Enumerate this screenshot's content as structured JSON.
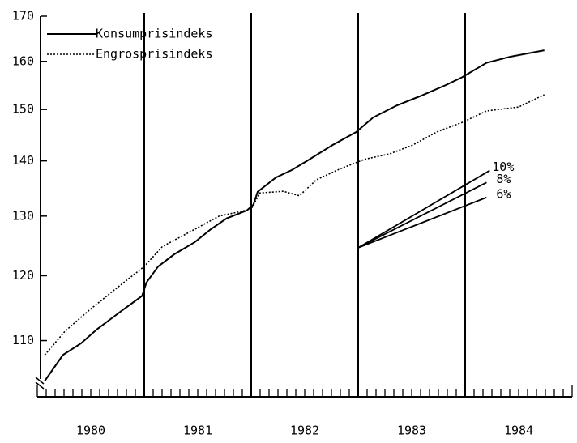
{
  "chart_data": {
    "type": "line",
    "log_y": true,
    "xlim": [
      1980,
      1985
    ],
    "ylim": [
      102,
      170
    ],
    "xticks": [
      {
        "value": 1980.5,
        "label": "1980"
      },
      {
        "value": 1981.5,
        "label": "1981"
      },
      {
        "value": 1982.5,
        "label": "1982"
      },
      {
        "value": 1983.5,
        "label": "1983"
      },
      {
        "value": 1984.5,
        "label": "1984"
      }
    ],
    "yticks": [
      110,
      120,
      130,
      140,
      150,
      160,
      170
    ],
    "vlines": [
      1981,
      1982,
      1983,
      1984
    ],
    "legend": "upper left",
    "series": [
      {
        "name": "Konsumprisindeks",
        "color": "#000",
        "dash": "solid",
        "x": [
          1980.07,
          1980.24,
          1980.41,
          1980.56,
          1980.79,
          1980.98,
          1981.02,
          1981.13,
          1981.28,
          1981.47,
          1981.62,
          1981.77,
          1981.96,
          1982.02,
          1982.06,
          1982.23,
          1982.38,
          1982.53,
          1982.76,
          1982.98,
          1983.14,
          1983.36,
          1983.59,
          1983.82,
          1983.97,
          1984.2,
          1984.42,
          1984.74
        ],
        "values": [
          104.2,
          107.9,
          109.6,
          111.7,
          114.5,
          116.8,
          118.9,
          121.5,
          123.5,
          125.5,
          127.7,
          129.6,
          131.0,
          132.0,
          134.3,
          136.9,
          138.3,
          140.1,
          143.0,
          145.5,
          148.4,
          150.8,
          152.8,
          155.0,
          156.6,
          159.7,
          161.0,
          162.4
        ]
      },
      {
        "name": "Engrosprisindeks",
        "color": "#000",
        "dash": "dotted",
        "x": [
          1980.07,
          1980.26,
          1980.48,
          1980.71,
          1981.0,
          1981.17,
          1981.47,
          1981.7,
          1982.0,
          1982.08,
          1982.3,
          1982.45,
          1982.61,
          1982.83,
          1983.06,
          1983.29,
          1983.51,
          1983.74,
          1983.97,
          1984.2,
          1984.5,
          1984.74
        ],
        "values": [
          107.9,
          111.4,
          114.5,
          117.6,
          121.5,
          124.8,
          127.7,
          130.0,
          131.2,
          134.1,
          134.4,
          133.6,
          136.5,
          138.5,
          140.3,
          141.3,
          143.0,
          145.6,
          147.4,
          149.7,
          150.5,
          153.0
        ]
      }
    ],
    "projections": [
      {
        "label": "10%",
        "x": [
          1983.0,
          1984.23
        ],
        "values": [
          124.6,
          138.2
        ]
      },
      {
        "label": "8%",
        "x": [
          1983.0,
          1984.2
        ],
        "values": [
          124.6,
          136.0
        ]
      },
      {
        "label": "6%",
        "x": [
          1983.0,
          1984.2
        ],
        "values": [
          124.6,
          133.3
        ]
      }
    ]
  }
}
